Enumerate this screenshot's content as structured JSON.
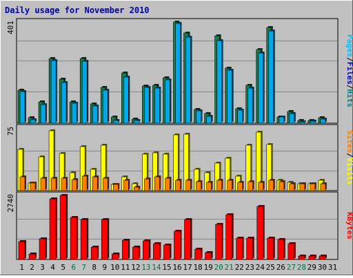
{
  "chart_data": {
    "type": "bar",
    "title": "Daily usage for November 2010",
    "categories": [
      "1",
      "2",
      "3",
      "4",
      "5",
      "6",
      "7",
      "8",
      "9",
      "10",
      "11",
      "12",
      "13",
      "14",
      "15",
      "16",
      "17",
      "18",
      "19",
      "20",
      "21",
      "22",
      "23",
      "24",
      "25",
      "26",
      "27",
      "28",
      "29",
      "30",
      "31"
    ],
    "weekend_days": [
      "6",
      "7",
      "13",
      "14",
      "20",
      "21",
      "27",
      "28"
    ],
    "colors": {
      "background": "#c0c0c0",
      "frame_bg": "#d8d8d8",
      "title": "#0000a0",
      "hits": "#008040",
      "files": "#00a8e8",
      "pages": "#00c0ff",
      "visits": "#ffff00",
      "sites": "#ff8000",
      "kbytes": "#ff0000",
      "weekend_label": "#007040",
      "weekday_label": "#000000"
    },
    "panels": [
      {
        "name": "hits-files-pages",
        "scale_label": "401",
        "max": 401,
        "legend": [
          {
            "label": "Pages",
            "color": "#00c0ff"
          },
          {
            "label": "/",
            "color": "#000000"
          },
          {
            "label": "Files",
            "color": "#0000c0"
          },
          {
            "label": "/",
            "color": "#000000"
          },
          {
            "label": "Hits",
            "color": "#008080"
          }
        ],
        "series": [
          {
            "name": "Hits",
            "color": "#1a7a4e",
            "values": [
              130,
              23,
              83,
              254,
              173,
              84,
              255,
              77,
              140,
              25,
              197,
              15,
              146,
              148,
              180,
              398,
              354,
              55,
              38,
              343,
              217,
              58,
              148,
              290,
              376,
              25,
              46,
              12,
              11,
              23,
              0
            ]
          },
          {
            "name": "Files",
            "color": "#00a8e8",
            "values": [
              125,
              14,
              74,
              246,
              161,
              79,
              244,
              69,
              131,
              12,
              182,
              10,
              141,
              137,
              171,
              392,
              339,
              49,
              26,
              326,
              208,
              52,
              138,
              276,
              362,
              25,
              39,
              6,
              7,
              16,
              0
            ]
          }
        ]
      },
      {
        "name": "visits-sites",
        "scale_label": "75",
        "max": 75,
        "legend": [
          {
            "label": "Sites",
            "color": "#ff8000"
          },
          {
            "label": "/",
            "color": "#000000"
          },
          {
            "label": "Visits",
            "color": "#ffff00"
          }
        ],
        "series": [
          {
            "name": "Visits",
            "color": "#ffff00",
            "values": [
              49,
              9,
              40,
              71,
              44,
              21,
              52,
              25,
              54,
              7,
              16,
              8,
              43,
              45,
              43,
              66,
              67,
              25,
              21,
              33,
              38,
              17,
              54,
              69,
              55,
              12,
              10,
              8,
              8,
              12,
              0
            ]
          },
          {
            "name": "Sites",
            "color": "#ff8000",
            "values": [
              16,
              9,
              15,
              15,
              15,
              13,
              17,
              16,
              15,
              7,
              12,
              4,
              14,
              16,
              15,
              12,
              12,
              11,
              10,
              12,
              12,
              10,
              11,
              10,
              12,
              11,
              8,
              8,
              8,
              8,
              0
            ]
          }
        ]
      },
      {
        "name": "kbytes",
        "scale_label": "2740",
        "max": 2740,
        "legend": [
          {
            "label": "KBytes",
            "color": "#ff0000"
          }
        ],
        "series": [
          {
            "name": "KBytes",
            "color": "#ff0000",
            "values": [
              765,
              226,
              871,
              2560,
              2710,
              1765,
              1700,
              536,
              1700,
              242,
              823,
              539,
              780,
              665,
              612,
              1186,
              1700,
              448,
              300,
              1474,
              1897,
              890,
              899,
              2230,
              890,
              850,
              675,
              146,
              146,
              146,
              0
            ]
          }
        ]
      }
    ]
  }
}
